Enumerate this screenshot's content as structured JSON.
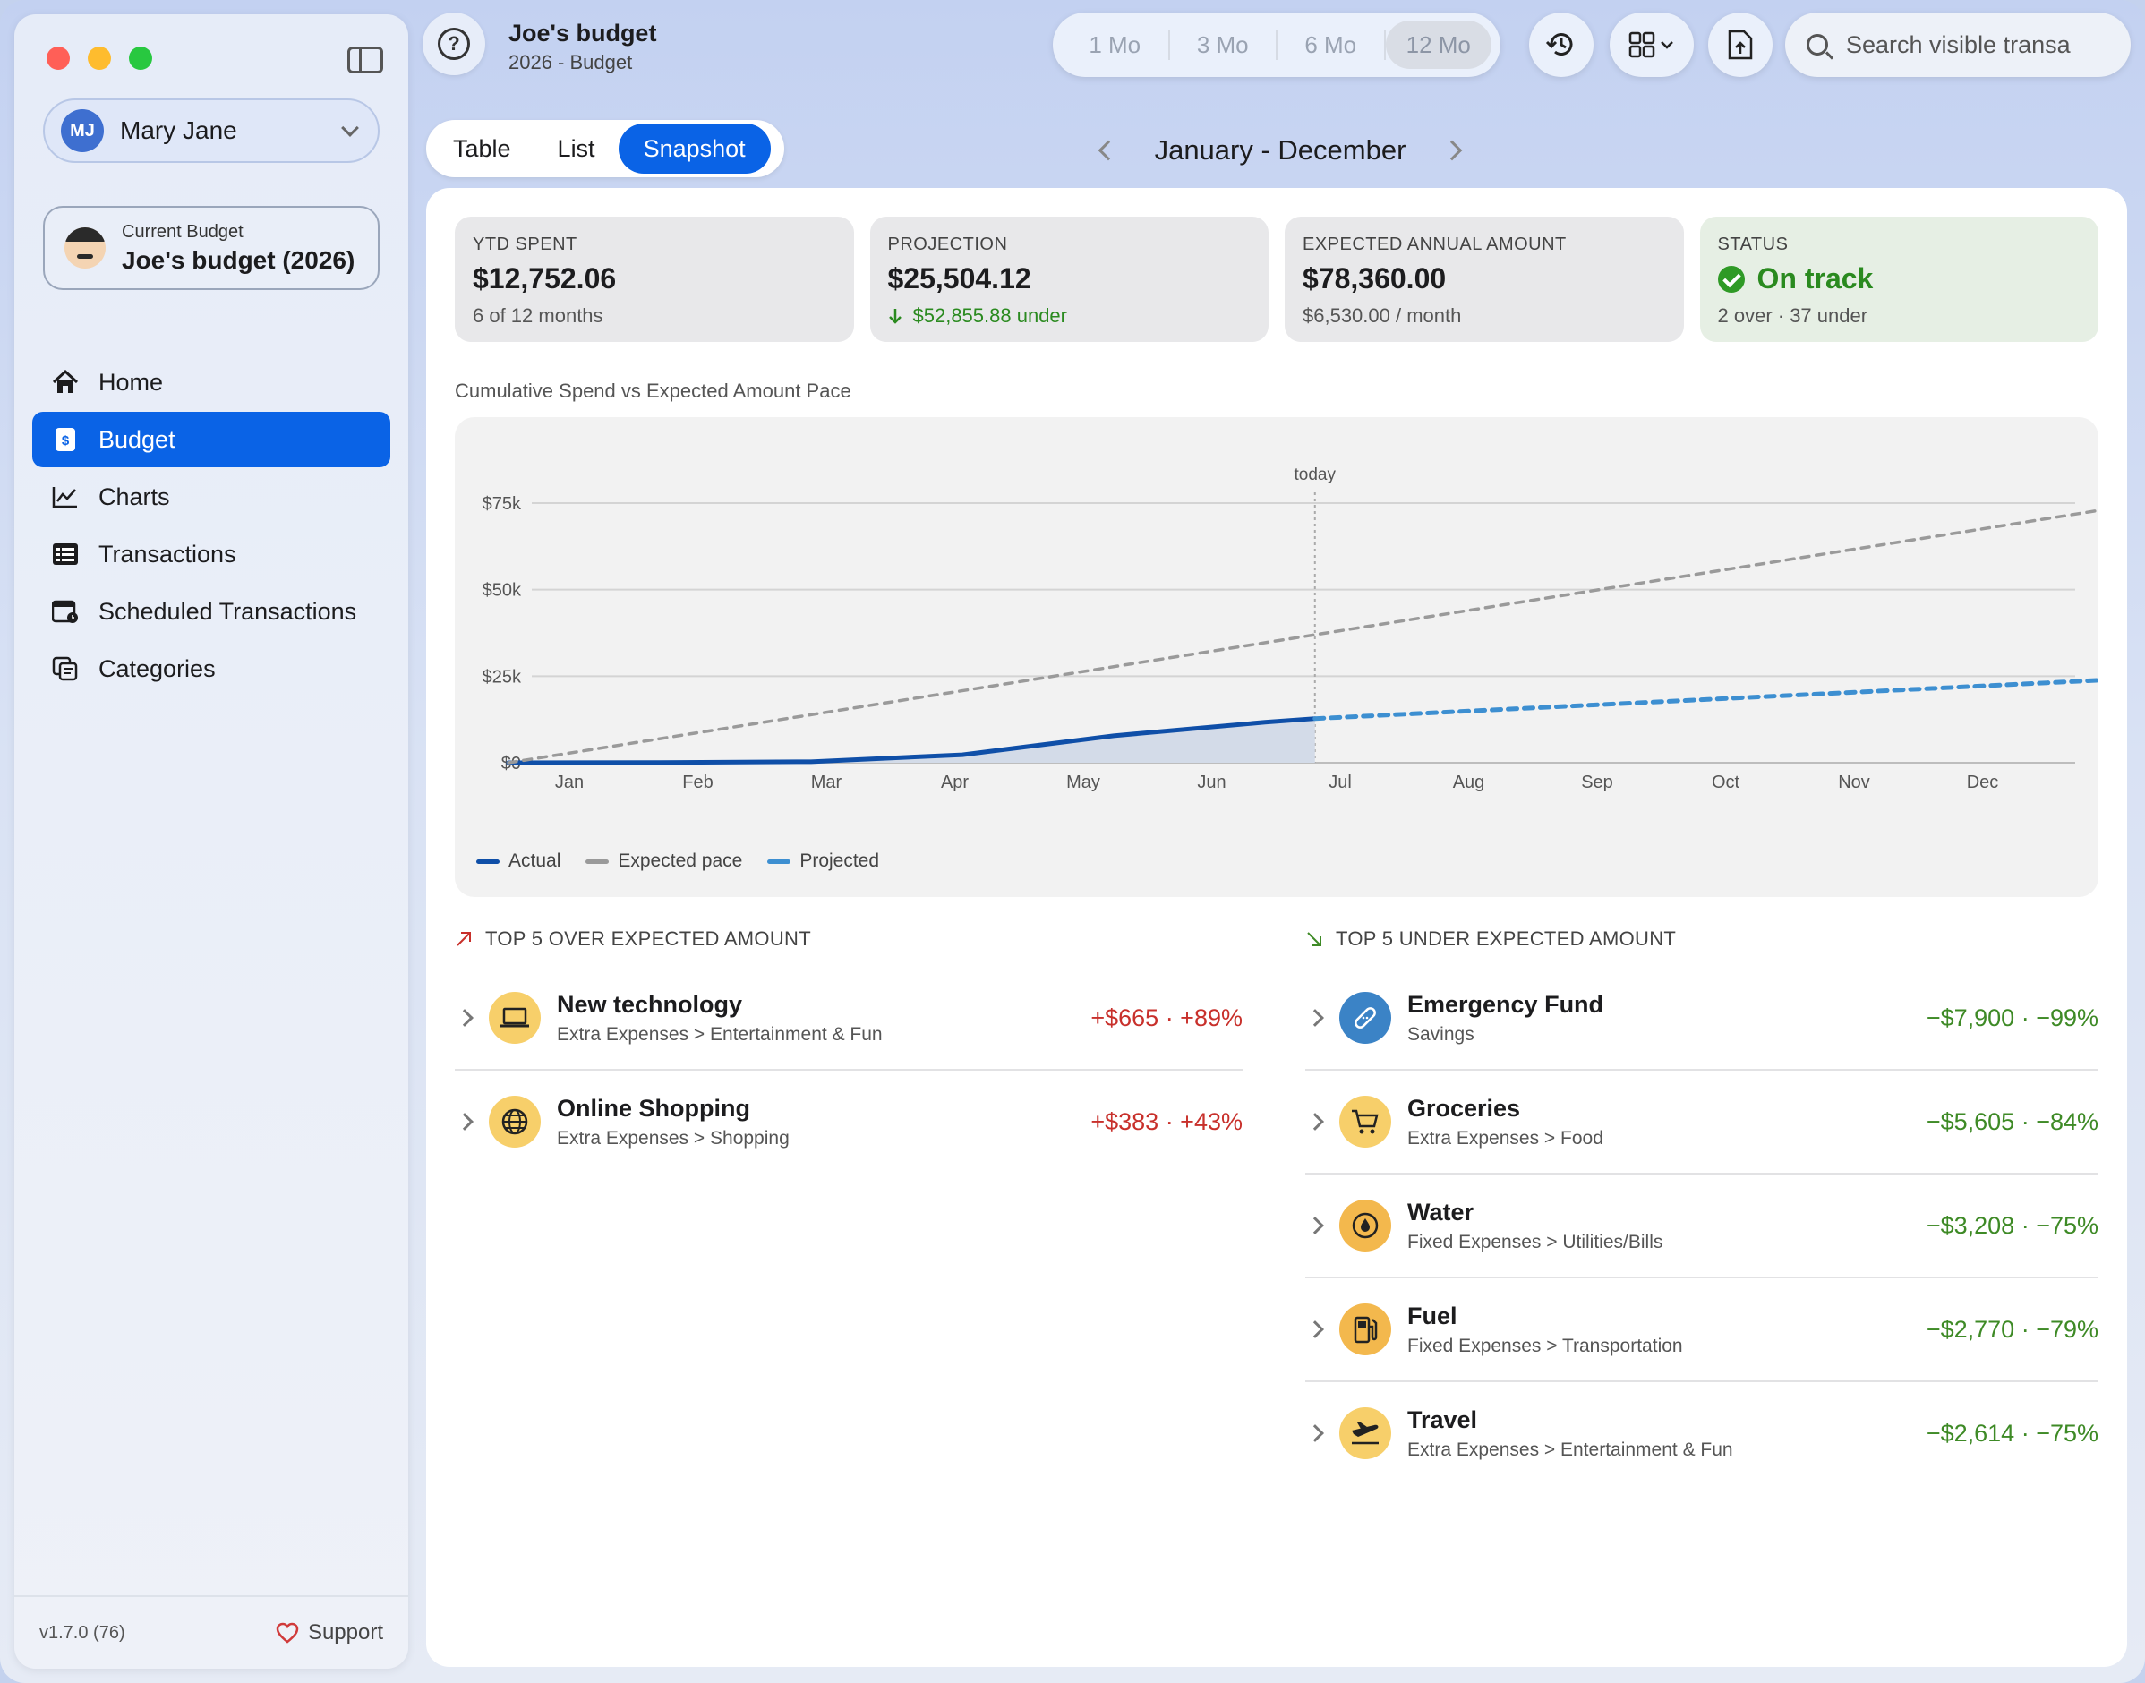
{
  "sidebar": {
    "user": {
      "initials": "MJ",
      "name": "Mary Jane"
    },
    "current_budget": {
      "label": "Current Budget",
      "name": "Joe's budget (2026)"
    },
    "nav": [
      {
        "label": "Home",
        "icon": "house-icon"
      },
      {
        "label": "Budget",
        "icon": "dollar-doc-icon",
        "active": true
      },
      {
        "label": "Charts",
        "icon": "line-chart-icon"
      },
      {
        "label": "Transactions",
        "icon": "list-icon"
      },
      {
        "label": "Scheduled Transactions",
        "icon": "calendar-clock-icon"
      },
      {
        "label": "Categories",
        "icon": "categories-icon"
      }
    ],
    "version": "v1.7.0 (76)",
    "support": "Support"
  },
  "header": {
    "title": "Joe's budget",
    "subtitle": "2026 - Budget",
    "ranges": [
      "1 Mo",
      "3 Mo",
      "6 Mo",
      "12 Mo"
    ],
    "selected_range": "12 Mo",
    "search_placeholder": "Search visible transa"
  },
  "view_tabs": {
    "table": "Table",
    "list": "List",
    "snapshot": "Snapshot",
    "selected": "Snapshot"
  },
  "period": "January - December",
  "cards": {
    "ytd": {
      "label": "YTD SPENT",
      "value": "$12,752.06",
      "sub": "6 of 12 months"
    },
    "projection": {
      "label": "PROJECTION",
      "value": "$25,504.12",
      "sub": "$52,855.88 under"
    },
    "expected": {
      "label": "EXPECTED ANNUAL AMOUNT",
      "value": "$78,360.00",
      "sub": "$6,530.00 / month"
    },
    "status": {
      "label": "STATUS",
      "value": "On track",
      "sub": "2 over · 37 under"
    }
  },
  "chart_title": "Cumulative Spend vs Expected Amount Pace",
  "chart_data": {
    "type": "line",
    "x": [
      "Jan",
      "Feb",
      "Mar",
      "Apr",
      "May",
      "Jun",
      "Jul",
      "Aug",
      "Sep",
      "Oct",
      "Nov",
      "Dec"
    ],
    "y_ticks": [
      "$0",
      "$25k",
      "$50k",
      "$75k"
    ],
    "ylim": [
      0,
      75000
    ],
    "today_label": "today",
    "series": [
      {
        "name": "Actual",
        "color": "#0f4fa8",
        "points": [
          [
            0,
            0
          ],
          [
            1,
            50
          ],
          [
            2,
            300
          ],
          [
            3,
            2300
          ],
          [
            4,
            7800
          ],
          [
            5,
            11700
          ],
          [
            5.33,
            12752
          ]
        ]
      },
      {
        "name": "Expected pace",
        "color": "#9a9a9a",
        "points": [
          [
            0,
            0
          ],
          [
            11.3,
            78360
          ]
        ]
      },
      {
        "name": "Projected",
        "color": "#3d8fd1",
        "points": [
          [
            5.33,
            12752
          ],
          [
            11.3,
            25504
          ]
        ]
      }
    ]
  },
  "over": {
    "title": "TOP 5 OVER EXPECTED AMOUNT",
    "items": [
      {
        "name": "New technology",
        "path": "Extra Expenses > Entertainment & Fun",
        "amount": "+$665 · +89%",
        "icon": "laptop-icon"
      },
      {
        "name": "Online Shopping",
        "path": "Extra Expenses > Shopping",
        "amount": "+$383 · +43%",
        "icon": "globe-icon"
      }
    ]
  },
  "under": {
    "title": "TOP 5 UNDER EXPECTED AMOUNT",
    "items": [
      {
        "name": "Emergency Fund",
        "path": "Savings",
        "amount": "−$7,900 · −99%",
        "icon": "bandage-icon"
      },
      {
        "name": "Groceries",
        "path": "Extra Expenses > Food",
        "amount": "−$5,605 · −84%",
        "icon": "cart-icon"
      },
      {
        "name": "Water",
        "path": "Fixed Expenses > Utilities/Bills",
        "amount": "−$3,208 · −75%",
        "icon": "drop-icon"
      },
      {
        "name": "Fuel",
        "path": "Fixed Expenses > Transportation",
        "amount": "−$2,770 · −79%",
        "icon": "fuel-icon"
      },
      {
        "name": "Travel",
        "path": "Extra Expenses > Entertainment & Fun",
        "amount": "−$2,614 · −75%",
        "icon": "airplane-icon"
      }
    ]
  }
}
